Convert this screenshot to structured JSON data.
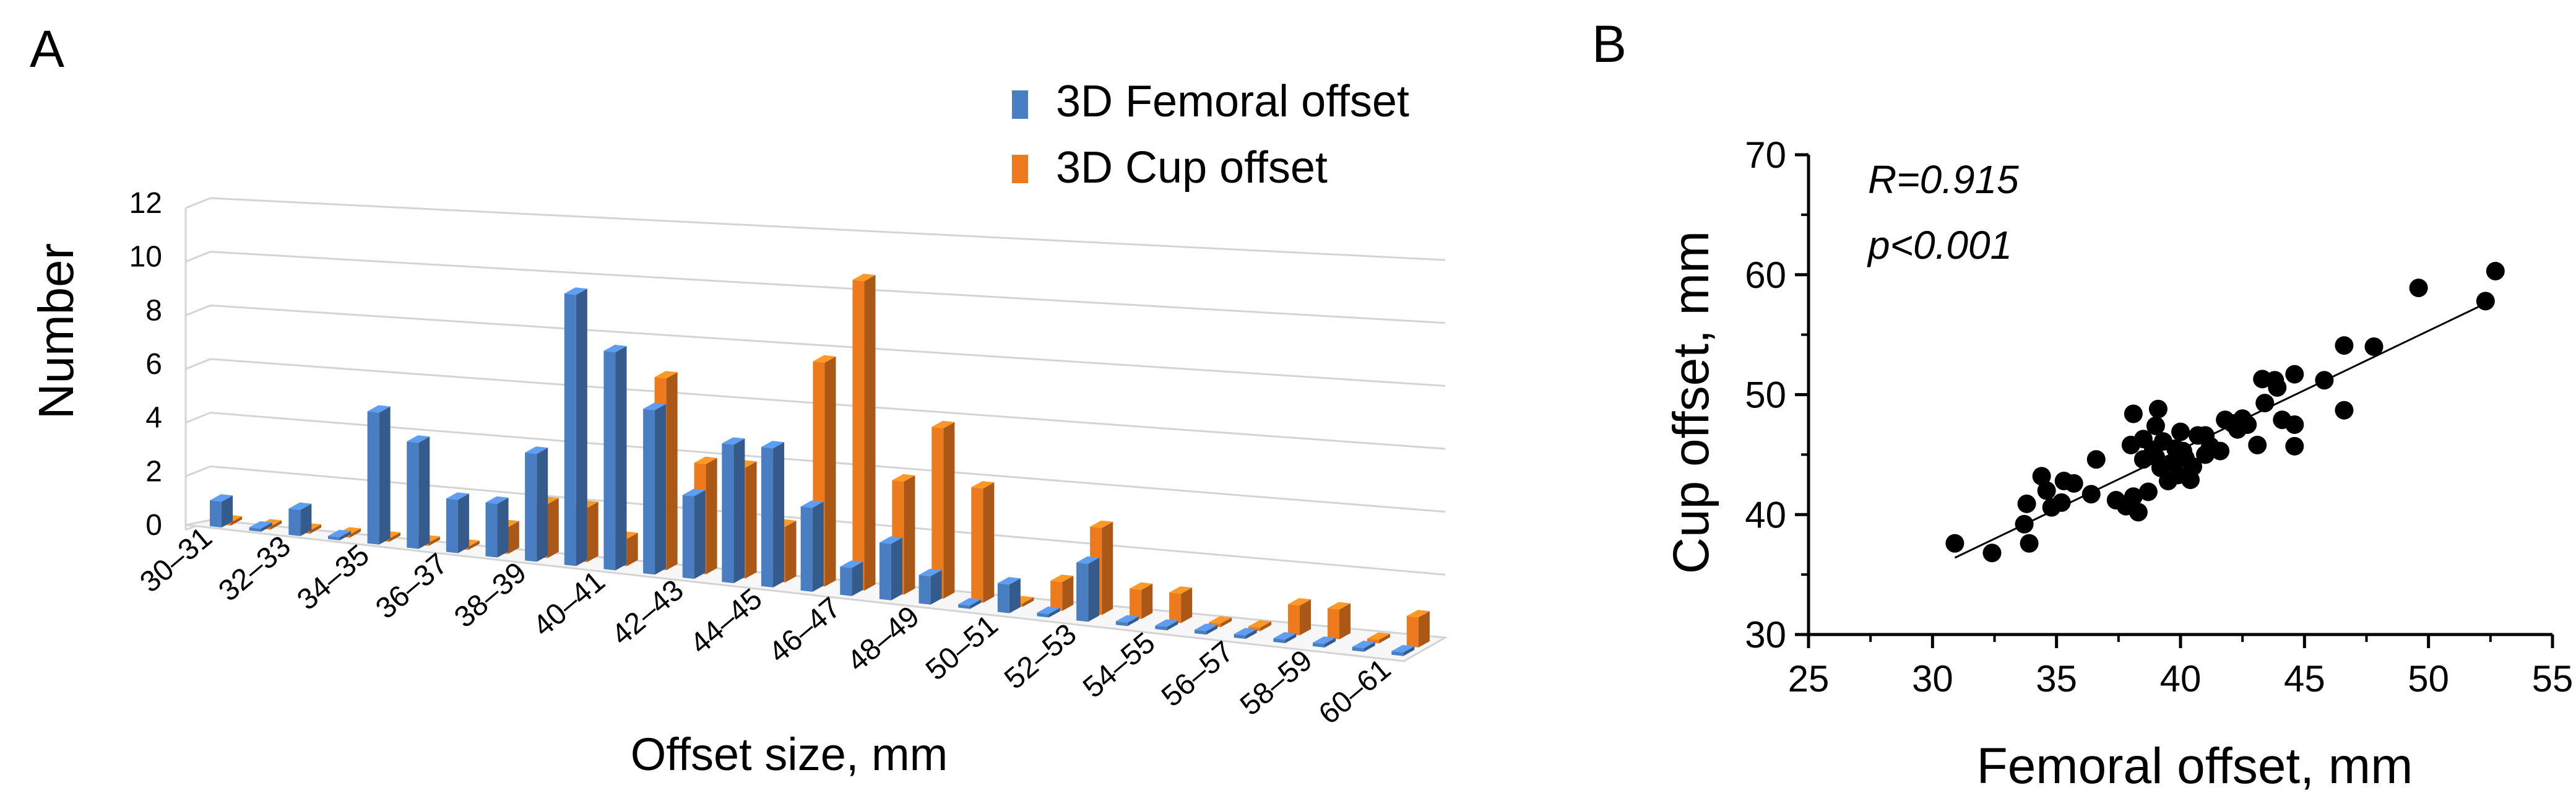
{
  "panels": {
    "a_letter": "A",
    "b_letter": "B"
  },
  "colors": {
    "femoral": "#4a7ec2",
    "cup": "#ee7a1e",
    "grid": "#d4d4d4",
    "axis": "#000000"
  },
  "chart_data": [
    {
      "type": "bar",
      "panel": "A",
      "style": "3D clustered column",
      "ylabel": "Number",
      "xlabel": "Offset size, mm",
      "ylim": [
        0,
        12
      ],
      "yticks": [
        "0",
        "2",
        "4",
        "6",
        "8",
        "10",
        "12"
      ],
      "grid": true,
      "legend_position": "top-center",
      "categories": [
        "30–31",
        "",
        "32–33",
        "",
        "34–35",
        "",
        "36–37",
        "",
        "38–39",
        "",
        "40–41",
        "",
        "42–43",
        "",
        "44–45",
        "",
        "46–47",
        "",
        "48–49",
        "",
        "50–51",
        "",
        "52–53",
        "",
        "54–55",
        "",
        "56–57",
        "",
        "58–59",
        "",
        "60–61"
      ],
      "series": [
        {
          "name": "3D Femoral offset",
          "values": [
            1,
            0,
            1,
            0,
            5,
            4,
            2,
            2,
            4,
            10,
            8,
            6,
            3,
            5,
            5,
            3,
            1,
            2,
            1,
            0,
            1,
            0,
            2,
            0,
            0,
            0,
            0,
            0,
            0,
            0,
            0
          ]
        },
        {
          "name": "3D Cup offset",
          "values": [
            0,
            0,
            0,
            0,
            0,
            0,
            0,
            1,
            2,
            2,
            1,
            7,
            4,
            4,
            2,
            8,
            11,
            4,
            6,
            4,
            0,
            1,
            3,
            1,
            1,
            0,
            0,
            1,
            1,
            0,
            1
          ]
        }
      ]
    },
    {
      "type": "scatter",
      "panel": "B",
      "xlabel": "Femoral offset, mm",
      "ylabel": "Cup offset, mm",
      "xlim": [
        25,
        55
      ],
      "ylim": [
        30,
        70
      ],
      "xticks": [
        "25",
        "30",
        "35",
        "40",
        "45",
        "50",
        "55"
      ],
      "yticks": [
        "30",
        "40",
        "50",
        "60",
        "70"
      ],
      "grid": false,
      "annotations": {
        "r": "R=0.915",
        "p": "p<0.001"
      },
      "fit_line": {
        "x": [
          30.9,
          52.4
        ],
        "y": [
          36.4,
          57.7
        ]
      },
      "points": [
        [
          30.9,
          37.6
        ],
        [
          32.4,
          36.8
        ],
        [
          33.7,
          39.2
        ],
        [
          33.9,
          37.6
        ],
        [
          33.8,
          40.9
        ],
        [
          34.4,
          43.2
        ],
        [
          34.6,
          42.0
        ],
        [
          34.8,
          40.6
        ],
        [
          35.2,
          41.0
        ],
        [
          35.3,
          42.8
        ],
        [
          35.7,
          42.6
        ],
        [
          36.4,
          41.7
        ],
        [
          36.6,
          44.6
        ],
        [
          37.4,
          41.2
        ],
        [
          37.8,
          40.7
        ],
        [
          38.0,
          45.8
        ],
        [
          38.1,
          48.4
        ],
        [
          38.1,
          41.5
        ],
        [
          38.3,
          40.2
        ],
        [
          38.5,
          46.3
        ],
        [
          38.5,
          44.6
        ],
        [
          38.7,
          41.9
        ],
        [
          38.9,
          45.4
        ],
        [
          39.0,
          47.4
        ],
        [
          39.0,
          44.8
        ],
        [
          39.1,
          48.8
        ],
        [
          39.2,
          43.9
        ],
        [
          39.3,
          46.1
        ],
        [
          39.5,
          42.8
        ],
        [
          39.7,
          44.3
        ],
        [
          39.8,
          45.5
        ],
        [
          39.9,
          43.3
        ],
        [
          40.0,
          46.9
        ],
        [
          40.1,
          45.3
        ],
        [
          40.2,
          44.7
        ],
        [
          40.4,
          42.9
        ],
        [
          40.5,
          44.0
        ],
        [
          40.7,
          46.6
        ],
        [
          41.0,
          45.0
        ],
        [
          41.0,
          46.6
        ],
        [
          41.2,
          45.7
        ],
        [
          41.6,
          45.3
        ],
        [
          41.8,
          47.9
        ],
        [
          42.1,
          47.6
        ],
        [
          42.3,
          47.1
        ],
        [
          42.5,
          48.0
        ],
        [
          42.7,
          47.5
        ],
        [
          43.1,
          45.8
        ],
        [
          43.3,
          51.3
        ],
        [
          43.4,
          49.3
        ],
        [
          43.8,
          51.2
        ],
        [
          43.9,
          50.6
        ],
        [
          44.1,
          47.9
        ],
        [
          44.6,
          51.7
        ],
        [
          44.6,
          45.7
        ],
        [
          44.6,
          47.5
        ],
        [
          45.8,
          51.2
        ],
        [
          46.6,
          48.7
        ],
        [
          46.6,
          54.1
        ],
        [
          47.8,
          54.0
        ],
        [
          49.6,
          58.9
        ],
        [
          52.3,
          57.8
        ],
        [
          52.7,
          60.3
        ]
      ]
    }
  ]
}
